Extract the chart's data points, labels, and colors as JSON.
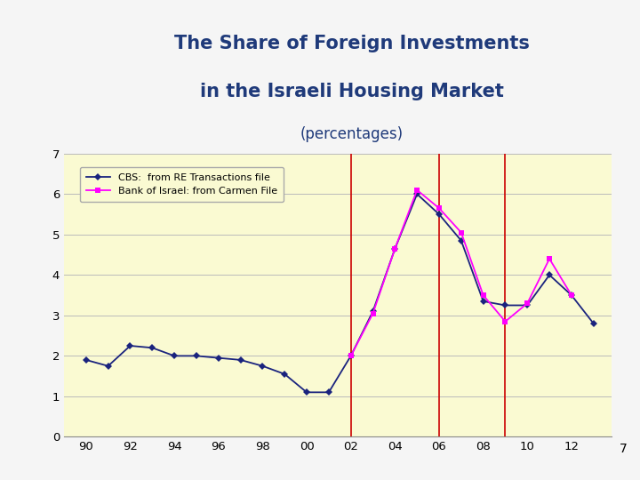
{
  "title_line1": "The Share of Foreign Investments",
  "title_line2": "in the Israeli Housing Market",
  "title_line3": "(percentages)",
  "title_color": "#1F3A7A",
  "background_color": "#FAFAD2",
  "page_background": "#F5F5F5",
  "cbs_x": [
    90,
    91,
    92,
    93,
    94,
    95,
    96,
    97,
    98,
    99,
    100,
    101,
    102,
    103,
    104,
    105,
    106,
    107,
    108,
    109,
    110,
    111,
    112,
    113
  ],
  "cbs_y": [
    1.9,
    1.75,
    2.25,
    2.2,
    2.0,
    2.0,
    1.95,
    1.9,
    1.75,
    1.55,
    1.1,
    1.1,
    2.0,
    3.1,
    4.65,
    6.0,
    5.5,
    4.85,
    3.35,
    3.25,
    3.25,
    4.0,
    3.5,
    2.8
  ],
  "cbs_color": "#1A237E",
  "boi_x": [
    102,
    103,
    104,
    105,
    106,
    107,
    108,
    109,
    110,
    111,
    112
  ],
  "boi_y": [
    2.0,
    3.05,
    4.65,
    6.1,
    5.65,
    5.05,
    3.5,
    2.85,
    3.3,
    4.4,
    3.5
  ],
  "boi_color": "#FF00FF",
  "vlines_x": [
    102,
    106,
    109
  ],
  "vline_color": "#CC0000",
  "xlim": [
    89.0,
    113.8
  ],
  "ylim": [
    0,
    7
  ],
  "yticks": [
    0,
    1,
    2,
    3,
    4,
    5,
    6,
    7
  ],
  "xtick_labels": [
    "90",
    "92",
    "94",
    "96",
    "98",
    "00",
    "02",
    "04",
    "06",
    "08",
    "10",
    "12"
  ],
  "xtick_positions": [
    90,
    92,
    94,
    96,
    98,
    100,
    102,
    104,
    106,
    108,
    110,
    112
  ],
  "legend_cbs": "CBS:  from RE Transactions file",
  "legend_boi": "Bank of Israel: from Carmen File",
  "footnote": "7"
}
